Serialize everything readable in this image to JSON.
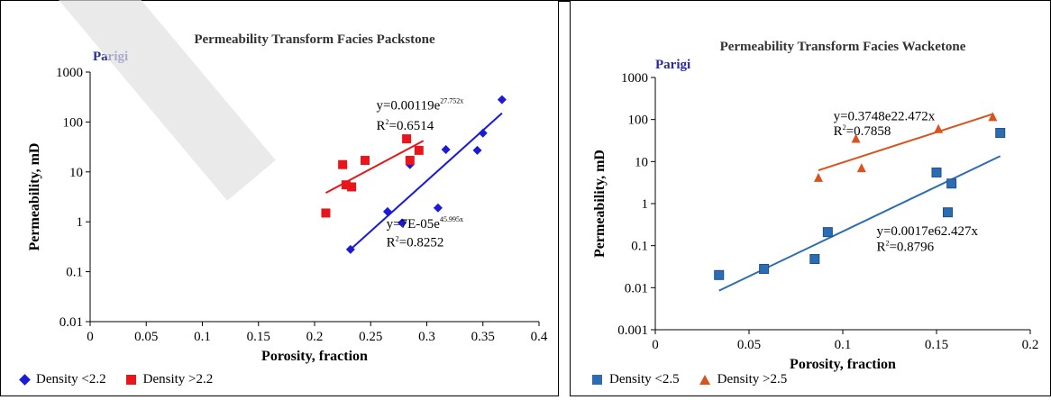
{
  "chart_data": [
    {
      "type": "scatter",
      "title": "Permeability Transform Facies Packstone",
      "panel_tag": "Parigi",
      "xlabel": "Porosity, fraction",
      "ylabel": "Permeability, mD",
      "xlim": [
        0,
        0.4
      ],
      "ylim": [
        0.01,
        1000
      ],
      "yscale": "log",
      "x_ticks": [
        "0",
        "0.05",
        "0.1",
        "0.15",
        "0.2",
        "0.25",
        "0.3",
        "0.35",
        "0.4"
      ],
      "y_ticks": [
        "0.01",
        "0.1",
        "1",
        "10",
        "100",
        "1000"
      ],
      "series": [
        {
          "name": "Density <2.2",
          "marker": "diamond",
          "color": "#1a1ad8",
          "points": [
            [
              0.232,
              0.28
            ],
            [
              0.265,
              1.6
            ],
            [
              0.278,
              0.95
            ],
            [
              0.285,
              14
            ],
            [
              0.31,
              1.9
            ],
            [
              0.317,
              28
            ],
            [
              0.345,
              27
            ],
            [
              0.35,
              60
            ],
            [
              0.367,
              280
            ]
          ],
          "trendline": {
            "x": [
              0.232,
              0.367
            ],
            "y": [
              0.28,
              150
            ]
          }
        },
        {
          "name": "Density >2.2",
          "marker": "square",
          "color": "#e8161b",
          "points": [
            [
              0.21,
              1.5
            ],
            [
              0.225,
              14
            ],
            [
              0.228,
              5.5
            ],
            [
              0.233,
              5
            ],
            [
              0.245,
              17
            ],
            [
              0.282,
              46
            ],
            [
              0.285,
              17
            ],
            [
              0.293,
              27
            ]
          ],
          "trendline": {
            "x": [
              0.21,
              0.297
            ],
            "y": [
              3.8,
              42
            ]
          }
        }
      ],
      "annotations": [
        {
          "base": "y=0.00119e",
          "exp": "27.752x",
          "x": 0.255,
          "y": 180
        },
        {
          "base": "R",
          "sup": "2",
          "rest": "=0.6514",
          "x": 0.255,
          "y": 70
        },
        {
          "base": "y=7E-05e",
          "exp": "45.995x",
          "x": 0.264,
          "y": 0.75
        },
        {
          "base": "R",
          "sup": "2",
          "rest": "=0.8252",
          "x": 0.264,
          "y": 0.32
        }
      ],
      "legend_position": "bottom-left"
    },
    {
      "type": "scatter",
      "title": "Permeability Transform Facies Wacketone",
      "panel_tag": "Parigi",
      "xlabel": "Porosity, fraction",
      "ylabel": "Permeability, mD",
      "xlim": [
        0,
        0.2
      ],
      "ylim": [
        0.001,
        1000
      ],
      "yscale": "log",
      "x_ticks": [
        "0",
        "0.05",
        "0.1",
        "0.15",
        "0.2"
      ],
      "y_ticks": [
        "0.001",
        "0.01",
        "0.1",
        "1",
        "10",
        "100",
        "1000"
      ],
      "series": [
        {
          "name": "Density <2.5",
          "marker": "square",
          "color": "#2b6cb3",
          "points": [
            [
              0.034,
              0.02
            ],
            [
              0.058,
              0.028
            ],
            [
              0.085,
              0.048
            ],
            [
              0.092,
              0.21
            ],
            [
              0.15,
              5.5
            ],
            [
              0.156,
              0.62
            ],
            [
              0.158,
              3
            ],
            [
              0.184,
              48
            ]
          ],
          "trendline": {
            "x": [
              0.034,
              0.184
            ],
            "y": [
              0.0085,
              13.5
            ]
          }
        },
        {
          "name": "Density >2.5",
          "marker": "triangle",
          "color": "#d9531e",
          "points": [
            [
              0.087,
              4
            ],
            [
              0.107,
              34
            ],
            [
              0.11,
              6.8
            ],
            [
              0.151,
              58
            ],
            [
              0.18,
              112
            ]
          ],
          "trendline": {
            "x": [
              0.087,
              0.18
            ],
            "y": [
              6.2,
              135
            ]
          }
        }
      ],
      "annotations": [
        {
          "base": "y=0.3748e22.472x",
          "x": 0.095,
          "y": 95
        },
        {
          "base": "R",
          "sup": "2",
          "rest": "=0.7858",
          "x": 0.095,
          "y": 42
        },
        {
          "base": "y=0.0017e62.427x",
          "x": 0.118,
          "y": 0.18
        },
        {
          "base": "R",
          "sup": "2",
          "rest": "=0.8796",
          "x": 0.118,
          "y": 0.075
        }
      ],
      "legend_position": "bottom-left"
    }
  ]
}
